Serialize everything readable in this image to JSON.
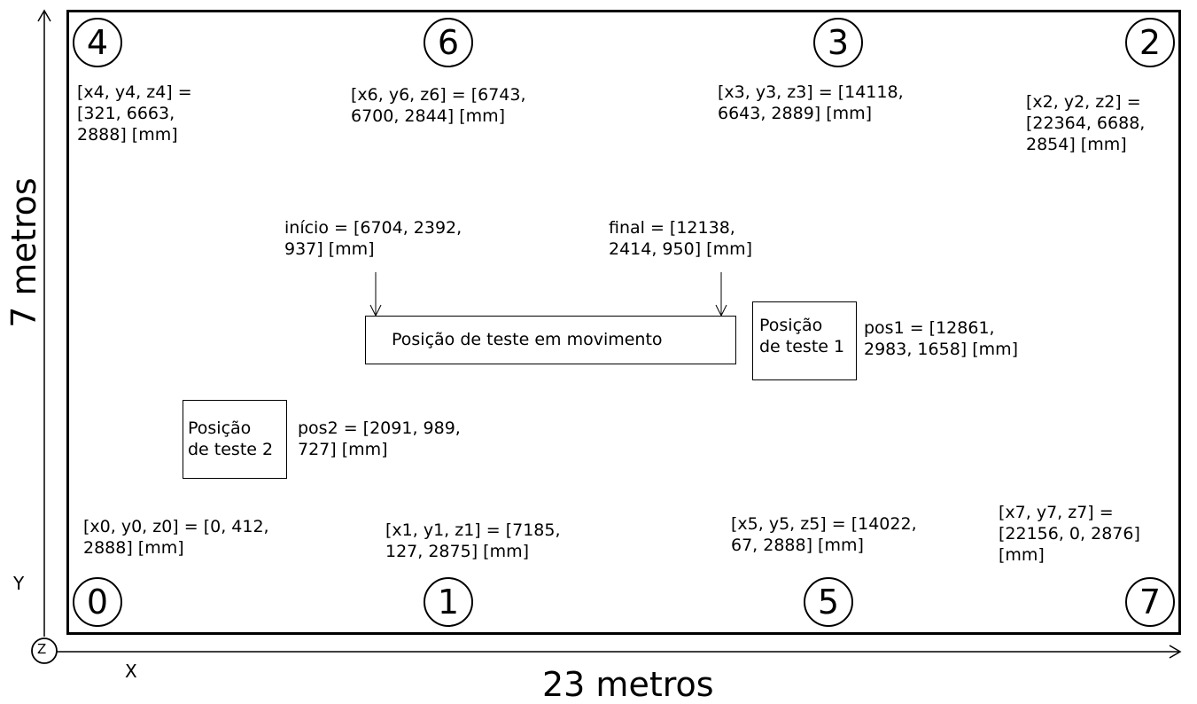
{
  "axes": {
    "x_label": "X",
    "y_label": "Y",
    "z_label": "Z",
    "width_label": "23 metros",
    "height_label": "7 metros"
  },
  "anchors": [
    {
      "id": "0",
      "coords": "[x0, y0, z0] = [0, 412,\n2888] [mm]"
    },
    {
      "id": "1",
      "coords": "[x1, y1, z1] = [7185,\n127, 2875] [mm]"
    },
    {
      "id": "2",
      "coords": "[x2, y2, z2] =\n[22364, 6688,\n2854] [mm]"
    },
    {
      "id": "3",
      "coords": "[x3, y3, z3] = [14118,\n6643, 2889] [mm]"
    },
    {
      "id": "4",
      "coords": "[x4, y4, z4] =\n[321, 6663,\n2888] [mm]"
    },
    {
      "id": "5",
      "coords": "[x5, y5, z5] = [14022,\n67, 2888] [mm]"
    },
    {
      "id": "6",
      "coords": "[x6, y6, z6] = [6743,\n6700, 2844] [mm]"
    },
    {
      "id": "7",
      "coords": "[x7, y7, z7] =\n[22156, 0, 2876]\n[mm]"
    }
  ],
  "moving_test": {
    "label": "Posição de teste em movimento",
    "start": "início = [6704, 2392,\n937] [mm]",
    "end": "final = [12138,\n2414, 950] [mm]"
  },
  "test_position_1": {
    "label": "Posição\nde teste 1",
    "coords": "pos1 = [12861,\n2983, 1658] [mm]"
  },
  "test_position_2": {
    "label": "Posição\nde teste 2",
    "coords": "pos2 = [2091, 989,\n727] [mm]"
  }
}
